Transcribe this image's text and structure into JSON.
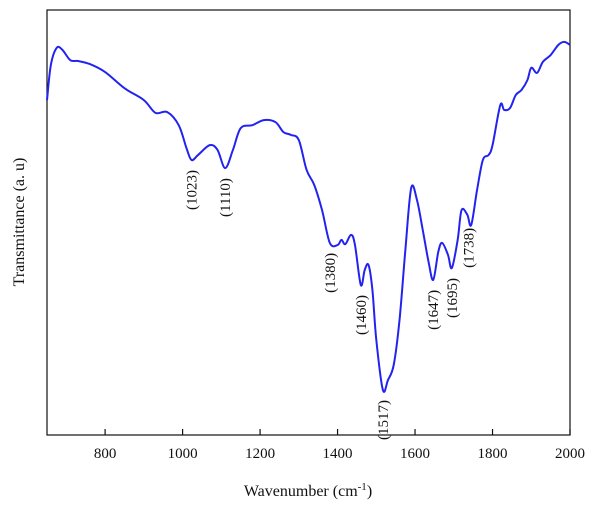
{
  "chart_data": {
    "type": "line",
    "y_label": "Transmittance (a. u)",
    "x_label": {
      "text": "Wavenumber (cm",
      "superscript": "-1",
      "suffix": ")"
    },
    "xlim": [
      650,
      2000
    ],
    "xticks": [
      800,
      1000,
      1200,
      1400,
      1600,
      1800,
      2000
    ],
    "ylim": [
      0,
      100
    ],
    "series": [
      {
        "color": "#2323f0",
        "x": [
          650,
          660,
          675,
          690,
          710,
          730,
          760,
          800,
          850,
          900,
          930,
          960,
          990,
          1010,
          1023,
          1040,
          1070,
          1090,
          1110,
          1130,
          1150,
          1180,
          1210,
          1240,
          1260,
          1280,
          1300,
          1320,
          1340,
          1360,
          1380,
          1400,
          1410,
          1420,
          1435,
          1445,
          1460,
          1470,
          1480,
          1490,
          1500,
          1517,
          1530,
          1545,
          1560,
          1575,
          1590,
          1605,
          1620,
          1635,
          1647,
          1660,
          1670,
          1685,
          1695,
          1710,
          1720,
          1735,
          1745,
          1760,
          1775,
          1790,
          1800,
          1820,
          1830,
          1845,
          1860,
          1875,
          1890,
          1900,
          1915,
          1930,
          1950,
          1970,
          1985,
          2000
        ],
        "values": [
          78.8,
          87.1,
          91.1,
          90.6,
          88.2,
          88.0,
          87.3,
          85.4,
          81.6,
          78.8,
          75.8,
          76.0,
          72.9,
          67.5,
          64.7,
          65.9,
          68.2,
          67.1,
          62.8,
          67.1,
          72.2,
          72.9,
          74.1,
          73.6,
          71.3,
          70.6,
          69.4,
          62.4,
          58.8,
          52.9,
          45.2,
          44.7,
          45.9,
          44.9,
          47.1,
          44.7,
          35.3,
          38.8,
          40.0,
          34.1,
          22.4,
          10.6,
          12.9,
          16.5,
          27.1,
          43.5,
          58.1,
          55.3,
          48.2,
          40.7,
          36.5,
          43.1,
          45.2,
          42.4,
          39.3,
          45.9,
          52.9,
          51.8,
          49.4,
          57.6,
          64.7,
          65.9,
          68.2,
          77.6,
          76.5,
          76.9,
          80.0,
          81.2,
          83.5,
          86.4,
          85.2,
          87.8,
          89.4,
          91.8,
          92.5,
          91.8
        ]
      }
    ],
    "annotations": [
      {
        "x": 1023,
        "label": "(1023)"
      },
      {
        "x": 1110,
        "label": "(1110)"
      },
      {
        "x": 1380,
        "label": "(1380)"
      },
      {
        "x": 1460,
        "label": "(1460)"
      },
      {
        "x": 1517,
        "label": "(1517)"
      },
      {
        "x": 1647,
        "label": "(1647)"
      },
      {
        "x": 1695,
        "label": "(1695)"
      },
      {
        "x": 1738,
        "label": "(1738)"
      }
    ]
  }
}
